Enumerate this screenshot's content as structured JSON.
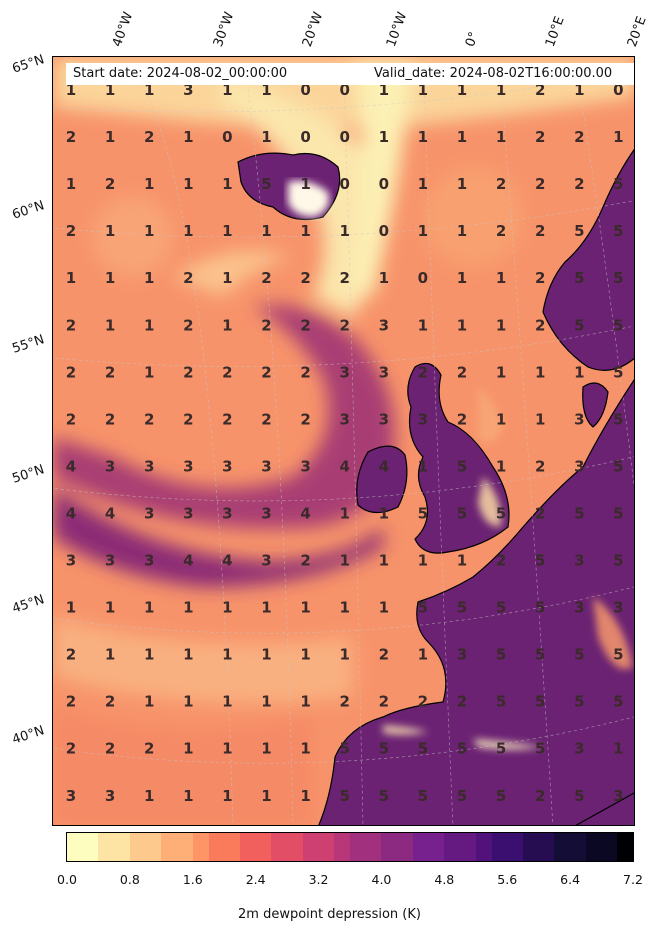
{
  "header": {
    "start_date": "Start date: 2024-08-02_00:00:00",
    "valid_date": "Valid_date: 2024-08-02T16:00:00.00"
  },
  "axes": {
    "lon_labels": [
      "40°W",
      "30°W",
      "20°W",
      "10°W",
      "0°",
      "10°E",
      "20°E"
    ],
    "lat_labels": [
      "65°N",
      "60°N",
      "55°N",
      "50°N",
      "45°N",
      "40°N"
    ]
  },
  "colorbar": {
    "label": "2m dewpoint depression (K)",
    "ticks": [
      "0.0",
      "0.8",
      "1.6",
      "2.4",
      "3.2",
      "4.0",
      "4.8",
      "5.6",
      "6.4",
      "7.2"
    ],
    "min": 0.0,
    "max": 7.2,
    "colormap": "magma_r"
  },
  "colors": {
    "low": "#fcf2b5",
    "mid": "#f5785e",
    "high": "#6b2273",
    "max": "#000004"
  },
  "grid_values": [
    [
      1,
      1,
      1,
      3,
      1,
      1,
      0,
      0,
      1,
      1,
      1,
      1,
      2,
      1,
      0
    ],
    [
      2,
      1,
      2,
      1,
      0,
      1,
      0,
      0,
      1,
      1,
      1,
      1,
      2,
      2,
      1
    ],
    [
      1,
      2,
      1,
      1,
      1,
      5,
      1,
      0,
      0,
      1,
      1,
      2,
      2,
      2,
      5
    ],
    [
      2,
      1,
      1,
      1,
      1,
      1,
      1,
      1,
      0,
      1,
      1,
      2,
      2,
      5,
      5
    ],
    [
      1,
      1,
      1,
      2,
      1,
      2,
      2,
      2,
      1,
      0,
      1,
      1,
      2,
      5,
      5
    ],
    [
      2,
      1,
      1,
      2,
      1,
      2,
      2,
      2,
      3,
      1,
      1,
      1,
      2,
      5,
      5
    ],
    [
      2,
      2,
      1,
      2,
      2,
      2,
      2,
      3,
      3,
      2,
      2,
      1,
      1,
      1,
      5
    ],
    [
      2,
      2,
      2,
      2,
      2,
      2,
      2,
      3,
      3,
      3,
      2,
      1,
      1,
      3,
      5
    ],
    [
      4,
      3,
      3,
      3,
      3,
      3,
      3,
      4,
      4,
      1,
      5,
      1,
      2,
      3,
      5
    ],
    [
      4,
      4,
      3,
      3,
      3,
      3,
      4,
      1,
      1,
      5,
      5,
      5,
      2,
      5,
      5
    ],
    [
      3,
      3,
      3,
      4,
      4,
      3,
      2,
      1,
      1,
      1,
      1,
      2,
      5,
      3,
      5
    ],
    [
      1,
      1,
      1,
      1,
      1,
      1,
      1,
      1,
      1,
      5,
      5,
      5,
      5,
      3,
      3
    ],
    [
      2,
      1,
      1,
      1,
      1,
      1,
      1,
      1,
      2,
      1,
      3,
      5,
      5,
      5,
      5
    ],
    [
      2,
      2,
      1,
      1,
      1,
      1,
      1,
      2,
      2,
      2,
      2,
      5,
      5,
      5,
      5
    ],
    [
      2,
      2,
      2,
      1,
      1,
      1,
      1,
      5,
      5,
      5,
      5,
      5,
      5,
      3,
      1
    ],
    [
      3,
      3,
      1,
      1,
      1,
      1,
      1,
      5,
      5,
      5,
      5,
      5,
      2,
      5,
      3
    ]
  ]
}
